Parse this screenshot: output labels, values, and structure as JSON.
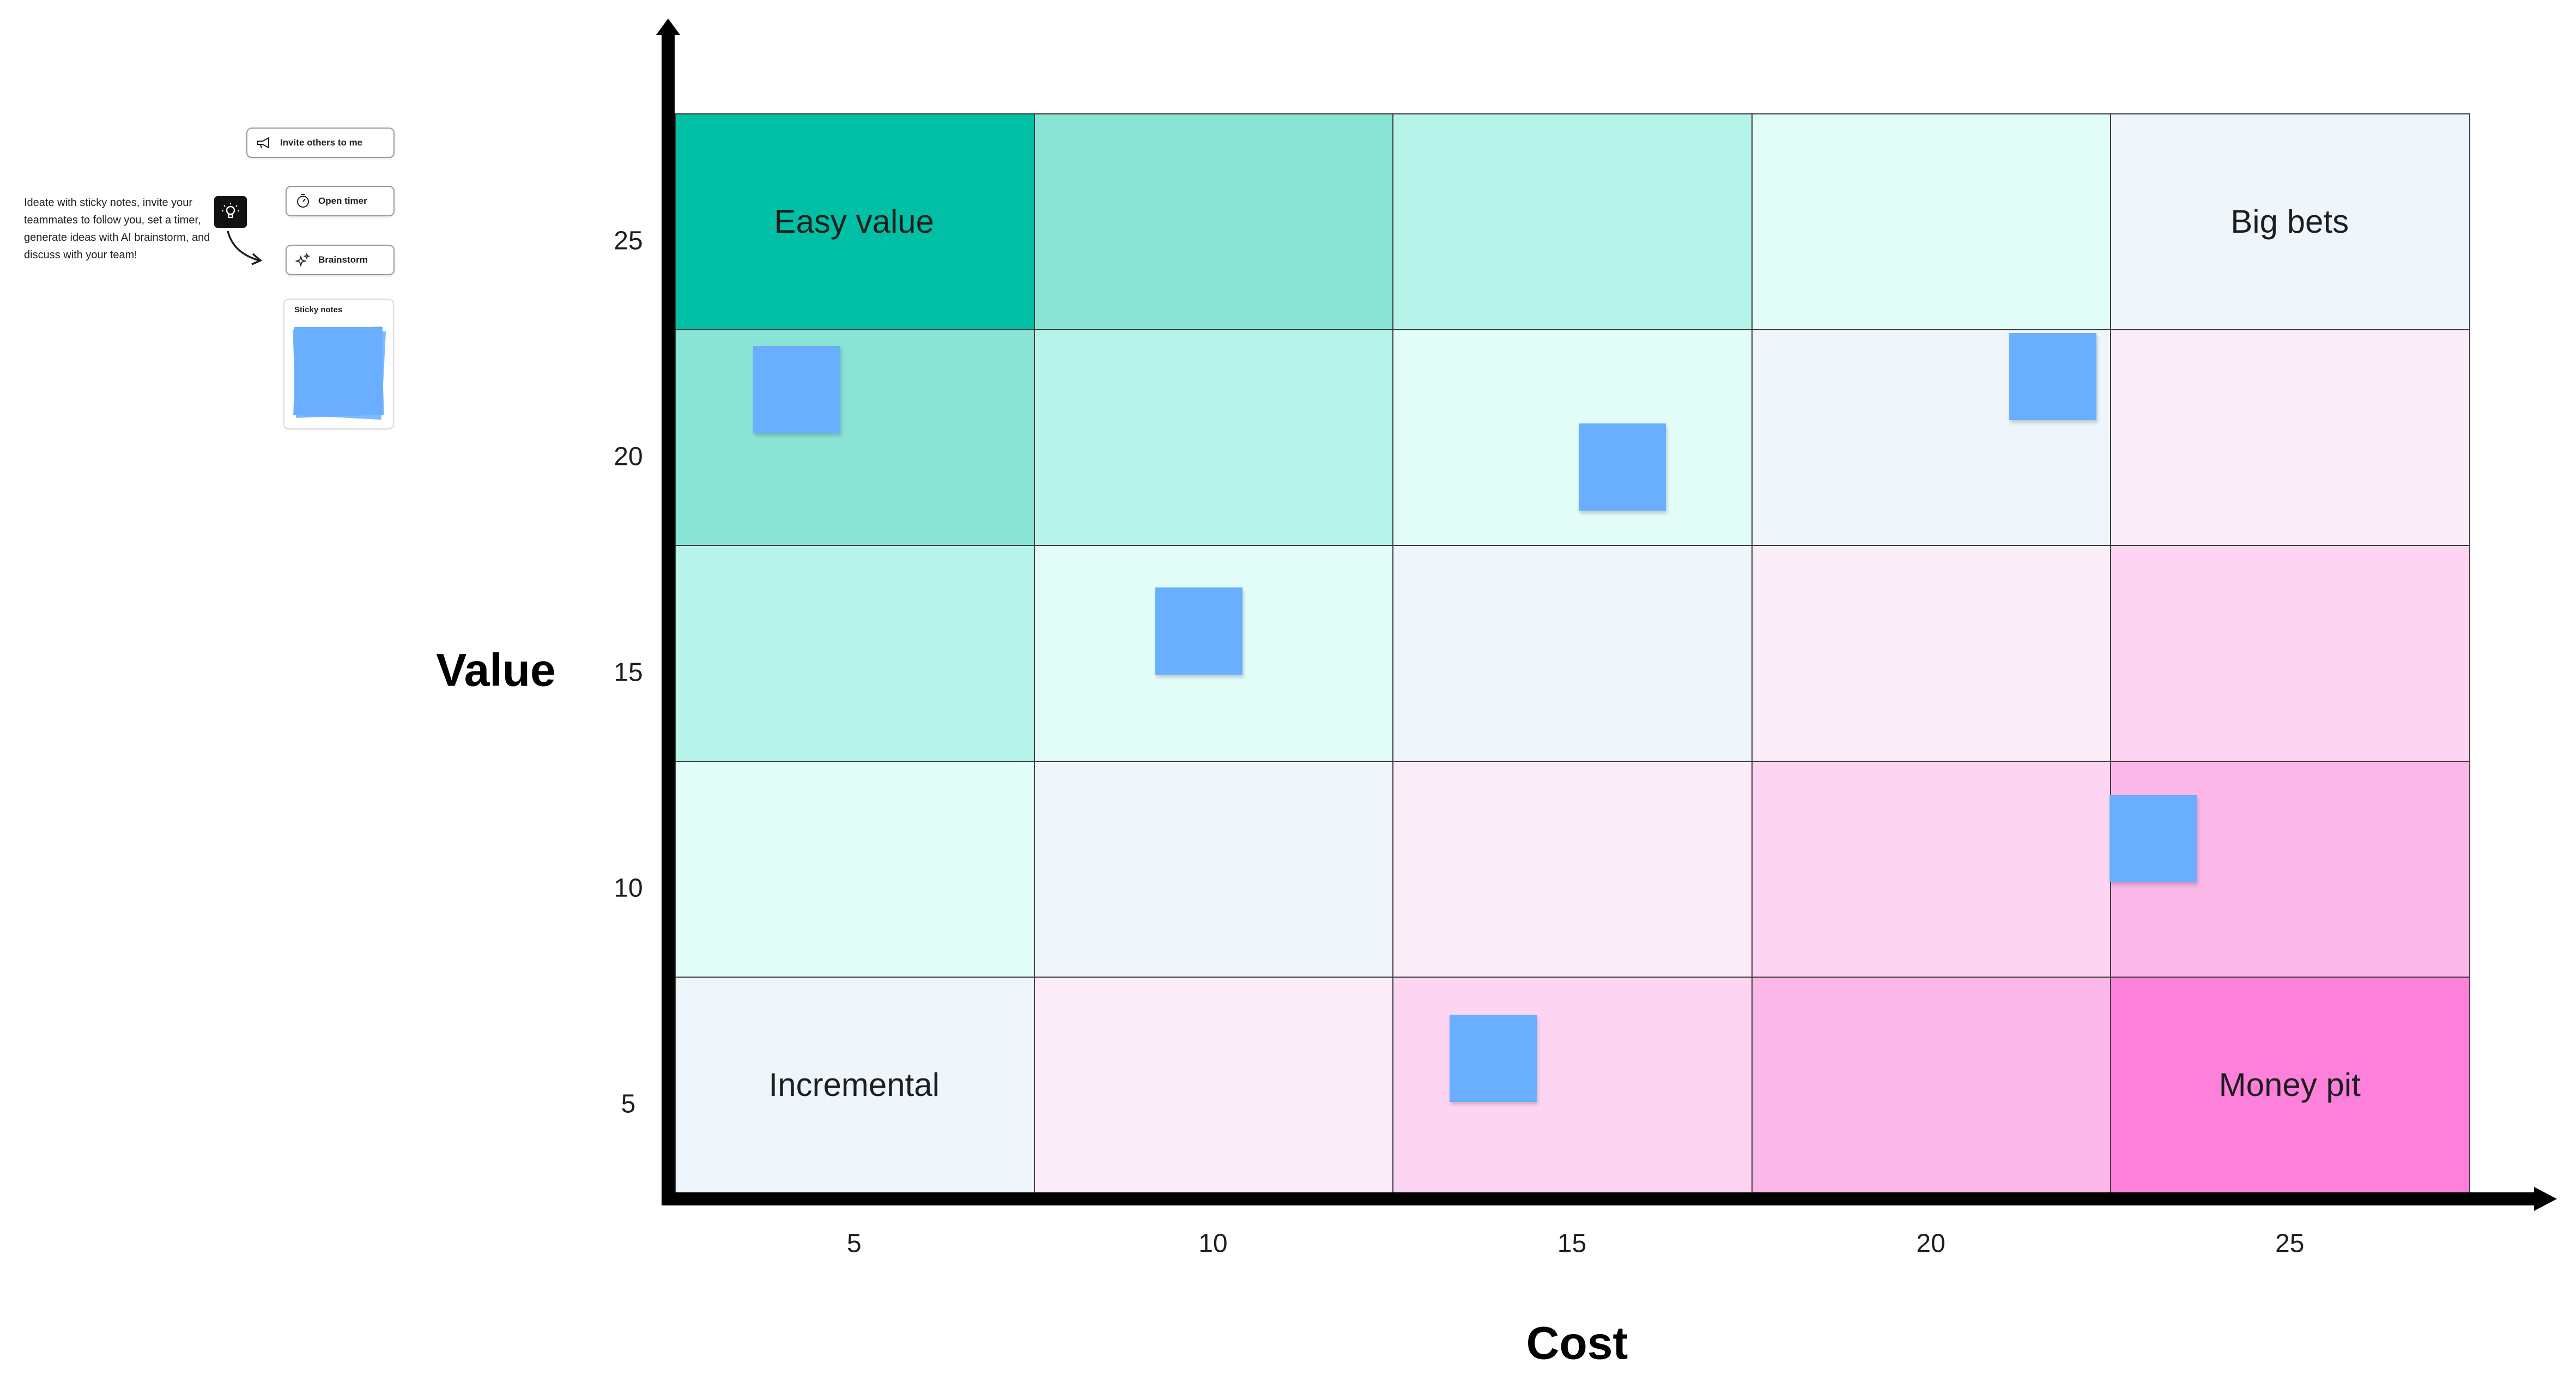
{
  "sidebar": {
    "description": "Ideate with sticky notes, invite your teammates to follow you, set a timer, generate ideas with AI brainstorm, and discuss with your team!",
    "buttons": [
      {
        "label": "Invite others to me",
        "icon": "megaphone-icon"
      },
      {
        "label": "Open timer",
        "icon": "timer-icon"
      },
      {
        "label": "Brainstorm",
        "icon": "sparkle-icon"
      }
    ],
    "sticky_card_title": "Sticky notes",
    "lightbulb_icon": "lightbulb-icon"
  },
  "colors": {
    "note": "#6aaeff",
    "grid_line": "#3d3d3d",
    "axis": "#000000"
  },
  "chart_data": {
    "type": "heatmap",
    "xlabel": "Cost",
    "ylabel": "Value",
    "x_ticks": [
      "5",
      "10",
      "15",
      "20",
      "25"
    ],
    "y_ticks": [
      "25",
      "20",
      "15",
      "10",
      "5"
    ],
    "cells": [
      [
        "#00bfa5",
        "#8ae4d6",
        "#b6f4ea",
        "#e2fcf8",
        "#eef6fc"
      ],
      [
        "#8ae4d6",
        "#b6f4ea",
        "#e2fcf8",
        "#eef6fc",
        "#faedf7"
      ],
      [
        "#b6f4ea",
        "#e2fcf8",
        "#eef6fc",
        "#faedf7",
        "#fdd5f2"
      ],
      [
        "#e2fcf8",
        "#eef6fc",
        "#faedf7",
        "#fdd5f2",
        "#fcb7e9"
      ],
      [
        "#eef6fc",
        "#faedf7",
        "#fdd5f2",
        "#fcb7e9",
        "#fd80da"
      ]
    ],
    "quadrant_labels": [
      {
        "text": "Easy value",
        "row": 0,
        "col": 0
      },
      {
        "text": "Big bets",
        "row": 0,
        "col": 4
      },
      {
        "text": "Incremental",
        "row": 4,
        "col": 0
      },
      {
        "text": "Money pit",
        "row": 4,
        "col": 4
      }
    ],
    "notes": [
      {
        "x": 4.2,
        "y": 21.1
      },
      {
        "x": 15.7,
        "y": 19.3
      },
      {
        "x": 21.7,
        "y": 21.4
      },
      {
        "x": 9.8,
        "y": 15.5
      },
      {
        "x": 23.1,
        "y": 10.7
      },
      {
        "x": 13.9,
        "y": 5.6
      }
    ]
  }
}
